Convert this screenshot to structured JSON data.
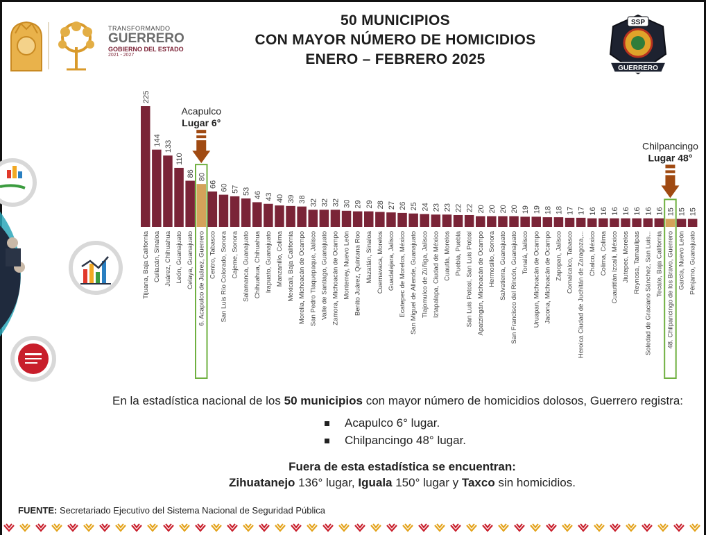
{
  "title": {
    "line1": "50 MUNICIPIOS",
    "line2": "CON MAYOR NÚMERO DE HOMICIDIOS",
    "line3": "ENERO – FEBRERO 2025"
  },
  "brand": {
    "transforming": "TRANSFORMANDO",
    "state": "GUERRERO",
    "government": "GOBIERNO DEL ESTADO",
    "period": "2021 - 2027"
  },
  "right_logo": {
    "top_text": "SSP",
    "banner_text": "GUERRERO"
  },
  "colors": {
    "bar": "#7a2437",
    "highlight_bar": "#d4a35a",
    "highlight_box": "#6fb040",
    "arrow": "#a04a12",
    "teal": "#2aa6b8",
    "red_badge": "#c81e2b"
  },
  "chart_data": {
    "type": "bar",
    "title": "50 MUNICIPIOS CON MAYOR NÚMERO DE HOMICIDIOS ENERO – FEBRERO 2025",
    "xlabel": "",
    "ylabel": "",
    "ylim": [
      0,
      225
    ],
    "grid": false,
    "categories": [
      "Tijuana, Baja California",
      "Culiacán, Sinaloa",
      "Juárez, Chihuahua",
      "León, Guanajuato",
      "Celaya, Guanajuato",
      "6. Acapulco de Juárez, Guerrero",
      "Centro, Tabasco",
      "San Luis Río Colorado, Sonora",
      "Cajeme, Sonora",
      "Salamanca, Guanajuato",
      "Chihuahua, Chihuahua",
      "Irapuato, Guanajuato",
      "Manzanillo, Colima",
      "Mexicali, Baja California",
      "Morelia, Michoacán de Ocampo",
      "San Pedro Tlaquepaque, Jalisco",
      "Valle de Santiago, Guanajuato",
      "Zamora, Michoacán de Ocampo",
      "Monterrey, Nuevo León",
      "Benito Juárez, Quintana Roo",
      "Mazatlán, Sinaloa",
      "Cuernavaca, Morelos",
      "Guadalajara, Jalisco",
      "Ecatepec de Morelos, México",
      "San Miguel de Allende, Guanajuato",
      "Tlajomulco de Zúñiga, Jalisco",
      "Iztapalapa, Ciudad de México",
      "Cuautla, Morelos",
      "Puebla, Puebla",
      "San Luis Potosí, San Luis Potosí",
      "Apatzingán, Michoacán de Ocampo",
      "Hermosillo, Sonora",
      "Salvatierra, Guanajuato",
      "San Francisco del Rincón, Guanajuato",
      "Tonalá, Jalisco",
      "Uruapan, Michoacán de Ocampo",
      "Jacona, Michoacán de Ocampo",
      "Zapopan, Jalisco",
      "Comalcalco, Tabasco",
      "Heroica Ciudad de Juchitán de Zaragoza,...",
      "Chalco, México",
      "Colima, Colima",
      "Cuautitlán Izcalli, México",
      "Jiutepec, Morelos",
      "Reynosa, Tamaulipas",
      "Soledad de Graciano Sánchez, San Luis...",
      "Tecate, Baja California",
      "48. Chilpancingo de los Bravo, Guerrero",
      "García, Nuevo León",
      "Pénjamo, Guanajuato"
    ],
    "values": [
      225,
      144,
      133,
      110,
      86,
      80,
      66,
      60,
      57,
      53,
      46,
      43,
      40,
      39,
      38,
      32,
      32,
      32,
      30,
      29,
      29,
      28,
      27,
      26,
      25,
      24,
      23,
      23,
      22,
      22,
      20,
      20,
      20,
      20,
      19,
      19,
      18,
      18,
      17,
      17,
      16,
      16,
      16,
      16,
      16,
      16,
      16,
      15,
      15,
      15
    ],
    "highlighted": [
      5,
      47
    ],
    "annotations": [
      {
        "index": 5,
        "line1": "Acapulco",
        "line2": "Lugar 6°"
      },
      {
        "index": 47,
        "line1": "Chilpancingo",
        "line2": "Lugar 48°"
      }
    ]
  },
  "summary": {
    "intro_before": "En la estadística nacional de los ",
    "intro_bold": "50 municipios",
    "intro_after": " con mayor número de homicidios dolosos, Guerrero registra:",
    "bullet1": "Acapulco 6° lugar.",
    "bullet2": "Chilpancingo 48° lugar.",
    "outside_title": "Fuera de esta estadística se encuentran:",
    "outside_city1": "Zihuatanejo",
    "outside_rank1": " 136° lugar, ",
    "outside_city2": "Iguala",
    "outside_rank2": " 150° lugar y ",
    "outside_city3": "Taxco",
    "outside_rest": " sin homicidios."
  },
  "source": {
    "label": "FUENTE:",
    "text": " Secretariado Ejecutivo del Sistema Nacional de Seguridad Pública"
  }
}
